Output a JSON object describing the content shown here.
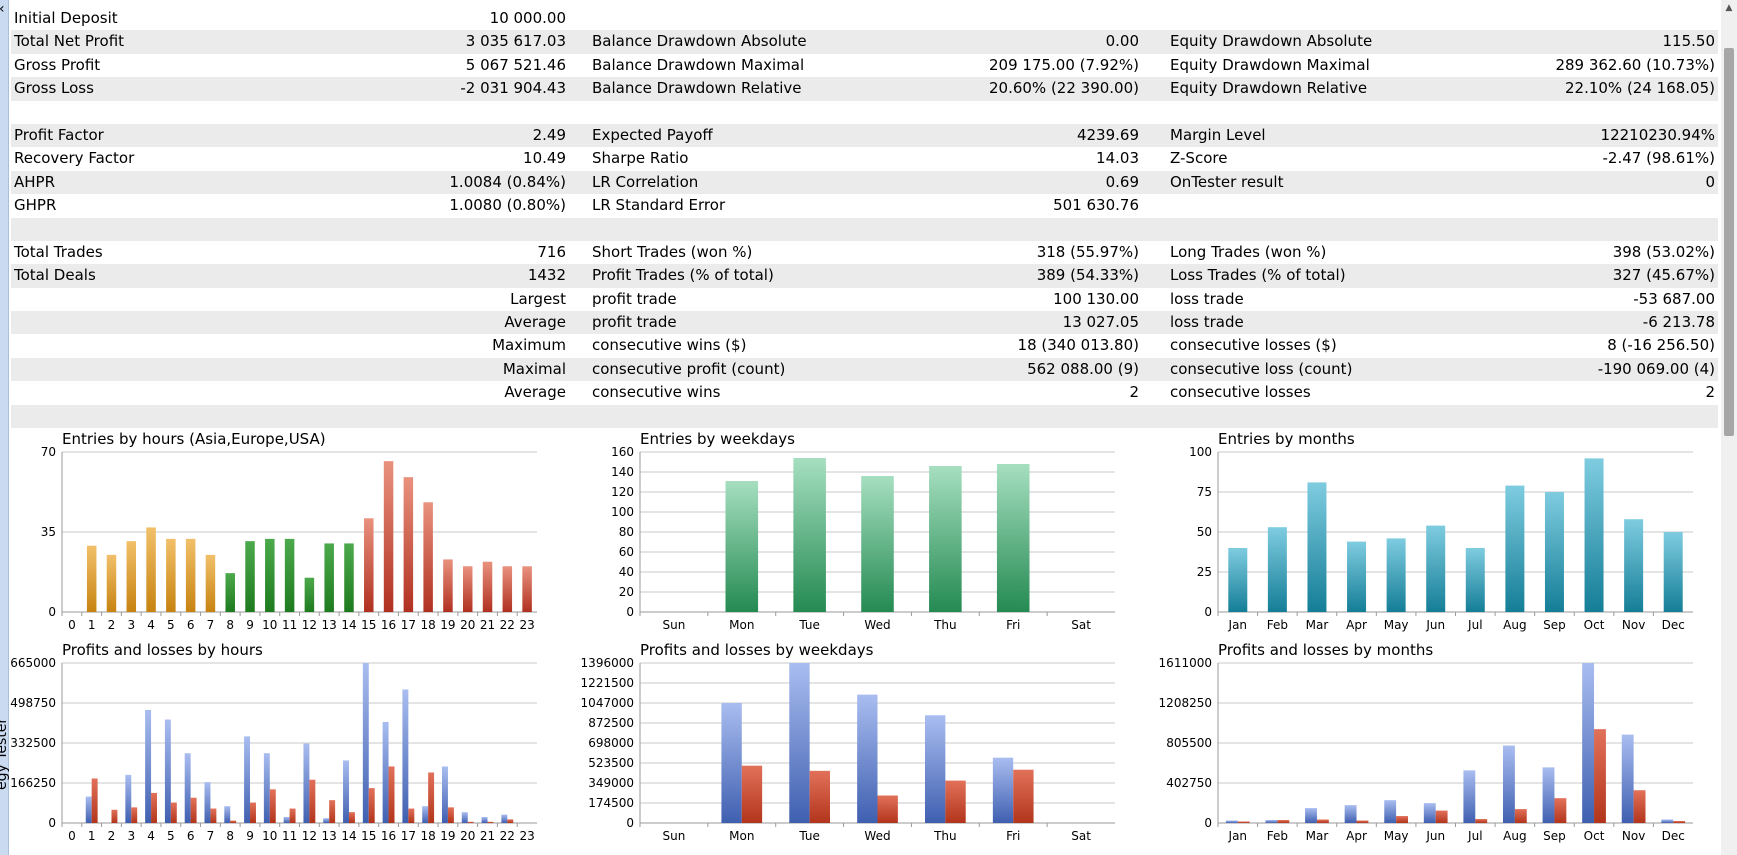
{
  "window": {
    "side_label": "Strategy Tester",
    "side_label_visible": "egy Tester",
    "collapse_icon": "chevron-left-icon"
  },
  "stats": {
    "rows": [
      {
        "shade": false,
        "c1l": "Initial Deposit",
        "c1r": "10 000.00",
        "c2l": "",
        "c2r": "",
        "c3l": "",
        "c3r": ""
      },
      {
        "shade": true,
        "c1l": "Total Net Profit",
        "c1r": "3 035 617.03",
        "c2l": "Balance Drawdown Absolute",
        "c2r": "0.00",
        "c3l": "Equity Drawdown Absolute",
        "c3r": "115.50"
      },
      {
        "shade": false,
        "c1l": "Gross Profit",
        "c1r": "5 067 521.46",
        "c2l": "Balance Drawdown Maximal",
        "c2r": "209 175.00 (7.92%)",
        "c3l": "Equity Drawdown Maximal",
        "c3r": "289 362.60 (10.73%)"
      },
      {
        "shade": true,
        "c1l": "Gross Loss",
        "c1r": "-2 031 904.43",
        "c2l": "Balance Drawdown Relative",
        "c2r": "20.60% (22 390.00)",
        "c3l": "Equity Drawdown Relative",
        "c3r": "22.10% (24 168.05)"
      },
      {
        "shade": false,
        "c1l": "",
        "c1r": "",
        "c2l": "",
        "c2r": "",
        "c3l": "",
        "c3r": ""
      },
      {
        "shade": true,
        "c1l": "Profit Factor",
        "c1r": "2.49",
        "c2l": "Expected Payoff",
        "c2r": "4239.69",
        "c3l": "Margin Level",
        "c3r": "12210230.94%"
      },
      {
        "shade": false,
        "c1l": "Recovery Factor",
        "c1r": "10.49",
        "c2l": "Sharpe Ratio",
        "c2r": "14.03",
        "c3l": "Z-Score",
        "c3r": "-2.47 (98.61%)"
      },
      {
        "shade": true,
        "c1l": "AHPR",
        "c1r": "1.0084 (0.84%)",
        "c2l": "LR Correlation",
        "c2r": "0.69",
        "c3l": "OnTester result",
        "c3r": "0"
      },
      {
        "shade": false,
        "c1l": "GHPR",
        "c1r": "1.0080 (0.80%)",
        "c2l": "LR Standard Error",
        "c2r": "501 630.76",
        "c3l": "",
        "c3r": ""
      },
      {
        "shade": true,
        "c1l": "",
        "c1r": "",
        "c2l": "",
        "c2r": "",
        "c3l": "",
        "c3r": ""
      },
      {
        "shade": false,
        "c1l": "Total Trades",
        "c1r": "716",
        "c2l": "Short Trades (won %)",
        "c2r": "318 (55.97%)",
        "c3l": "Long Trades (won %)",
        "c3r": "398 (53.02%)"
      },
      {
        "shade": true,
        "c1l": "Total Deals",
        "c1r": "1432",
        "c2l": "Profit Trades (% of total)",
        "c2r": "389 (54.33%)",
        "c3l": "Loss Trades (% of total)",
        "c3r": "327 (45.67%)"
      },
      {
        "shade": false,
        "c1l": "",
        "c1r": "Largest",
        "c2l": "profit trade",
        "c2r": "100 130.00",
        "c3l": "loss trade",
        "c3r": "-53 687.00"
      },
      {
        "shade": true,
        "c1l": "",
        "c1r": "Average",
        "c2l": "profit trade",
        "c2r": "13 027.05",
        "c3l": "loss trade",
        "c3r": "-6 213.78"
      },
      {
        "shade": false,
        "c1l": "",
        "c1r": "Maximum",
        "c2l": "consecutive wins ($)",
        "c2r": "18 (340 013.80)",
        "c3l": "consecutive losses ($)",
        "c3r": "8 (-16 256.50)"
      },
      {
        "shade": true,
        "c1l": "",
        "c1r": "Maximal",
        "c2l": "consecutive profit (count)",
        "c2r": "562 088.00 (9)",
        "c3l": "consecutive loss (count)",
        "c3r": "-190 069.00 (4)"
      },
      {
        "shade": false,
        "c1l": "",
        "c1r": "Average",
        "c2l": "consecutive wins",
        "c2r": "2",
        "c3l": "consecutive losses",
        "c3r": "2"
      },
      {
        "shade": true,
        "c1l": "",
        "c1r": "",
        "c2l": "",
        "c2r": "",
        "c3l": "",
        "c3r": ""
      }
    ]
  },
  "chart_data": [
    {
      "id": "entries-hours",
      "type": "bar",
      "title": "Entries by hours (Asia,Europe,USA)",
      "categories": [
        "0",
        "1",
        "2",
        "3",
        "4",
        "5",
        "6",
        "7",
        "8",
        "9",
        "10",
        "11",
        "12",
        "13",
        "14",
        "15",
        "16",
        "17",
        "18",
        "19",
        "20",
        "21",
        "22",
        "23"
      ],
      "values": [
        0,
        29,
        25,
        31,
        37,
        32,
        32,
        25,
        17,
        31,
        32,
        32,
        15,
        30,
        30,
        41,
        66,
        59,
        48,
        23,
        20,
        22,
        20,
        20
      ],
      "yticks": [
        "0",
        "35",
        "70"
      ],
      "ymax": 70,
      "colors": [
        "#f3f3f3",
        "#f2c06a",
        "#f2c06a",
        "#f2c06a",
        "#f2c06a",
        "#f2c06a",
        "#f2c06a",
        "#f2c06a",
        "#4caa4c",
        "#4caa4c",
        "#4caa4c",
        "#4caa4c",
        "#4caa4c",
        "#4caa4c",
        "#4caa4c",
        "#e9927e",
        "#e9927e",
        "#e9927e",
        "#e9927e",
        "#e9927e",
        "#e9927e",
        "#e9927e",
        "#e9927e",
        "#e9927e"
      ],
      "colors_dark": [
        "#f3f3f3",
        "#c78310",
        "#c78310",
        "#c78310",
        "#c78310",
        "#c78310",
        "#c78310",
        "#c78310",
        "#1e7a1e",
        "#1e7a1e",
        "#1e7a1e",
        "#1e7a1e",
        "#1e7a1e",
        "#1e7a1e",
        "#1e7a1e",
        "#b03020",
        "#b03020",
        "#b03020",
        "#b03020",
        "#b03020",
        "#b03020",
        "#b03020",
        "#b03020",
        "#b03020"
      ]
    },
    {
      "id": "entries-weekdays",
      "type": "bar",
      "title": "Entries by weekdays",
      "categories": [
        "Sun",
        "Mon",
        "Tue",
        "Wed",
        "Thu",
        "Fri",
        "Sat"
      ],
      "values": [
        0,
        131,
        154,
        136,
        146,
        148,
        0
      ],
      "yticks": [
        "0",
        "20",
        "40",
        "60",
        "80",
        "100",
        "120",
        "140",
        "160"
      ],
      "ymax": 160,
      "color": "#a6dfc0",
      "color_dark": "#248a52"
    },
    {
      "id": "entries-months",
      "type": "bar",
      "title": "Entries by months",
      "categories": [
        "Jan",
        "Feb",
        "Mar",
        "Apr",
        "May",
        "Jun",
        "Jul",
        "Aug",
        "Sep",
        "Oct",
        "Nov",
        "Dec"
      ],
      "values": [
        40,
        53,
        81,
        44,
        46,
        54,
        40,
        79,
        75,
        96,
        58,
        50
      ],
      "yticks": [
        "0",
        "25",
        "50",
        "75",
        "100"
      ],
      "ymax": 100,
      "color": "#7fcce0",
      "color_dark": "#147e97"
    },
    {
      "id": "pl-hours",
      "type": "bar",
      "title": "Profits and losses by hours",
      "categories": [
        "0",
        "1",
        "2",
        "3",
        "4",
        "5",
        "6",
        "7",
        "8",
        "9",
        "10",
        "11",
        "12",
        "13",
        "14",
        "15",
        "16",
        "17",
        "18",
        "19",
        "20",
        "21",
        "22",
        "23"
      ],
      "series": [
        {
          "name": "profit",
          "values": [
            0,
            110000,
            0,
            200000,
            470000,
            430000,
            290000,
            170000,
            70000,
            360000,
            290000,
            25000,
            330000,
            20000,
            260000,
            665000,
            420000,
            555000,
            70000,
            235000,
            45000,
            25000,
            35000,
            0
          ]
        },
        {
          "name": "loss",
          "values": [
            0,
            185000,
            55000,
            65000,
            125000,
            85000,
            105000,
            60000,
            10000,
            85000,
            140000,
            60000,
            180000,
            95000,
            45000,
            145000,
            235000,
            60000,
            210000,
            65000,
            5000,
            5000,
            15000,
            0
          ]
        }
      ],
      "yticks": [
        "0",
        "166250",
        "332500",
        "498750",
        "665000"
      ],
      "ymax": 665000,
      "colors": [
        "#3f5fb0",
        "#b2351b"
      ]
    },
    {
      "id": "pl-weekdays",
      "type": "bar",
      "title": "Profits and losses by weekdays",
      "categories": [
        "Sun",
        "Mon",
        "Tue",
        "Wed",
        "Thu",
        "Fri",
        "Sat"
      ],
      "series": [
        {
          "name": "profit",
          "values": [
            0,
            1047000,
            1396000,
            1120000,
            940000,
            570000,
            0
          ]
        },
        {
          "name": "loss",
          "values": [
            0,
            500000,
            455000,
            240000,
            370000,
            465000,
            0
          ]
        }
      ],
      "yticks": [
        "0",
        "174500",
        "349000",
        "523500",
        "698000",
        "872500",
        "1047000",
        "1221500",
        "1396000"
      ],
      "ymax": 1396000,
      "colors": [
        "#3f5fb0",
        "#b2351b"
      ]
    },
    {
      "id": "pl-months",
      "type": "bar",
      "title": "Profits and losses by months",
      "categories": [
        "Jan",
        "Feb",
        "Mar",
        "Apr",
        "May",
        "Jun",
        "Jul",
        "Aug",
        "Sep",
        "Oct",
        "Nov",
        "Dec"
      ],
      "series": [
        {
          "name": "profit",
          "values": [
            25000,
            30000,
            150000,
            180000,
            230000,
            200000,
            530000,
            780000,
            560000,
            1611000,
            890000,
            35000
          ]
        },
        {
          "name": "loss",
          "values": [
            15000,
            30000,
            35000,
            25000,
            70000,
            125000,
            40000,
            140000,
            250000,
            945000,
            330000,
            20000
          ]
        }
      ],
      "yticks": [
        "0",
        "402750",
        "805500",
        "1208250",
        "1611000"
      ],
      "ymax": 1611000,
      "colors": [
        "#3f5fb0",
        "#b2351b"
      ]
    }
  ]
}
